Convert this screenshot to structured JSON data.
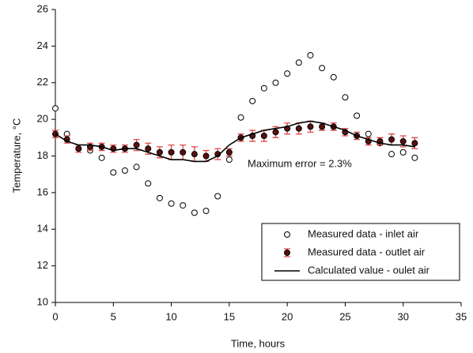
{
  "chart_data": {
    "type": "scatter",
    "x_label": "Time, hours",
    "y_label": "Temperature, °C",
    "annotation": "Maximum error = 2.3%",
    "xlim": [
      0,
      35
    ],
    "xticks": [
      0,
      5,
      10,
      15,
      20,
      25,
      30,
      35
    ],
    "ylim": [
      10,
      26
    ],
    "yticks": [
      10,
      12,
      14,
      16,
      18,
      20,
      22,
      24,
      26
    ],
    "grid": false,
    "legend_position": "lower-right",
    "series": [
      {
        "name": "Measured data - inlet air",
        "marker": "open-circle",
        "color": "#000000",
        "x": [
          0,
          1,
          2,
          3,
          4,
          5,
          6,
          7,
          8,
          9,
          10,
          11,
          12,
          13,
          14,
          15,
          16,
          17,
          18,
          19,
          20,
          21,
          22,
          23,
          24,
          25,
          26,
          27,
          28,
          29,
          30,
          31
        ],
        "values": [
          20.6,
          19.2,
          18.4,
          18.3,
          17.9,
          17.1,
          17.2,
          17.4,
          16.5,
          15.7,
          15.4,
          15.3,
          14.9,
          15.0,
          15.8,
          17.8,
          20.1,
          21.0,
          21.7,
          22.0,
          22.5,
          23.1,
          23.5,
          22.8,
          22.3,
          21.2,
          20.2,
          19.2,
          18.7,
          18.1,
          18.2,
          17.9
        ]
      },
      {
        "name": "Measured data - outlet air",
        "marker": "filled-circle",
        "color": "#5a1010",
        "error_color": "#e04848",
        "x": [
          0,
          1,
          2,
          3,
          4,
          5,
          6,
          7,
          8,
          9,
          10,
          11,
          12,
          13,
          14,
          15,
          16,
          17,
          18,
          19,
          20,
          21,
          22,
          23,
          24,
          25,
          26,
          27,
          28,
          29,
          30,
          31
        ],
        "values": [
          19.2,
          18.9,
          18.4,
          18.5,
          18.5,
          18.4,
          18.4,
          18.6,
          18.4,
          18.2,
          18.2,
          18.2,
          18.1,
          18.0,
          18.1,
          18.2,
          19.0,
          19.1,
          19.1,
          19.3,
          19.5,
          19.5,
          19.6,
          19.6,
          19.6,
          19.3,
          19.1,
          18.8,
          18.8,
          18.9,
          18.8,
          18.7
        ],
        "errors": [
          0.2,
          0.2,
          0.2,
          0.2,
          0.2,
          0.2,
          0.2,
          0.3,
          0.3,
          0.3,
          0.4,
          0.4,
          0.4,
          0.3,
          0.3,
          0.2,
          0.2,
          0.3,
          0.3,
          0.3,
          0.3,
          0.3,
          0.3,
          0.2,
          0.2,
          0.2,
          0.2,
          0.2,
          0.2,
          0.3,
          0.3,
          0.3
        ]
      },
      {
        "name": "Calculated value - oulet air",
        "marker": "line",
        "color": "#000000",
        "x": [
          0,
          1,
          2,
          3,
          4,
          5,
          6,
          7,
          8,
          9,
          10,
          11,
          12,
          13,
          14,
          15,
          16,
          17,
          18,
          19,
          20,
          21,
          22,
          23,
          24,
          25,
          26,
          27,
          28,
          29,
          30,
          31
        ],
        "values": [
          19.2,
          18.8,
          18.6,
          18.6,
          18.5,
          18.3,
          18.4,
          18.4,
          18.2,
          18.0,
          17.8,
          17.8,
          17.7,
          17.7,
          18.0,
          18.6,
          19.0,
          19.2,
          19.4,
          19.5,
          19.6,
          19.8,
          19.9,
          19.8,
          19.6,
          19.4,
          19.1,
          18.9,
          18.7,
          18.6,
          18.6,
          18.5
        ]
      }
    ]
  }
}
